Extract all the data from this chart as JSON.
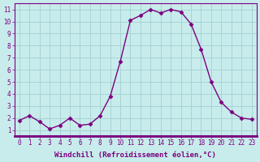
{
  "x": [
    0,
    1,
    2,
    3,
    4,
    5,
    6,
    7,
    8,
    9,
    10,
    11,
    12,
    13,
    14,
    15,
    16,
    17,
    18,
    19,
    20,
    21,
    22,
    23
  ],
  "y": [
    1.8,
    2.2,
    1.7,
    1.1,
    1.4,
    2.0,
    1.4,
    1.5,
    2.2,
    3.8,
    6.7,
    10.1,
    10.5,
    11.0,
    10.7,
    11.0,
    10.8,
    9.8,
    7.7,
    5.0,
    3.3,
    2.5,
    2.0,
    1.9
  ],
  "line_color": "#7b0080",
  "marker": "D",
  "marker_size": 2.5,
  "bg_color": "#c8ecec",
  "grid_color": "#a8d4d4",
  "xlabel": "Windchill (Refroidissement éolien,°C)",
  "ylabel_ticks": [
    1,
    2,
    3,
    4,
    5,
    6,
    7,
    8,
    9,
    10,
    11
  ],
  "xlim": [
    -0.5,
    23.5
  ],
  "ylim": [
    0.5,
    11.5
  ],
  "xticks": [
    0,
    1,
    2,
    3,
    4,
    5,
    6,
    7,
    8,
    9,
    10,
    11,
    12,
    13,
    14,
    15,
    16,
    17,
    18,
    19,
    20,
    21,
    22,
    23
  ],
  "tick_fontsize": 5.5,
  "xlabel_fontsize": 6.5,
  "linewidth": 1.0,
  "spine_color": "#7b0080",
  "bottom_bar_color": "#7b0080"
}
